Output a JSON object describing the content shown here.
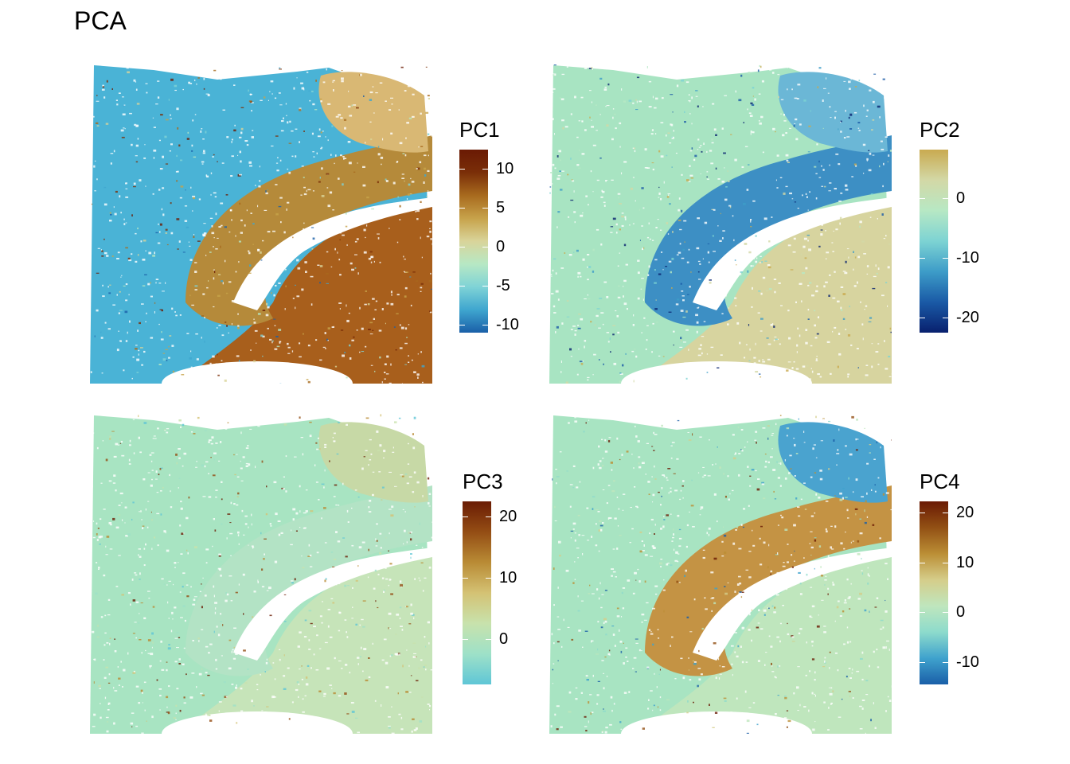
{
  "figure": {
    "title": "PCA"
  },
  "colors": {
    "scale": [
      "#08306b",
      "#1f78b4",
      "#5bc8d6",
      "#a8e4c2",
      "#d8d6a0",
      "#c8a84a",
      "#b07a28",
      "#8a4a12",
      "#6b1e04"
    ],
    "tissue_background": "#a8e4c2"
  },
  "chart_data": [
    {
      "type": "heatmap",
      "panel": "PC1",
      "legend": {
        "title": "PC1",
        "ticks": [
          10,
          5,
          0,
          -5,
          -10
        ],
        "range": [
          -11.0,
          12.4
        ]
      },
      "scale_stops": [
        "#1a5fa8",
        "#3fa6cf",
        "#7fd3d6",
        "#b7e8c4",
        "#d9d49a",
        "#c7a24a",
        "#a86a1e",
        "#7a2e08",
        "#6a1a04"
      ]
    },
    {
      "type": "heatmap",
      "panel": "PC2",
      "legend": {
        "title": "PC2",
        "ticks": [
          0,
          -10,
          -20
        ],
        "range": [
          -22.5,
          8.2
        ]
      },
      "scale_stops": [
        "#08206e",
        "#1a5aa6",
        "#3d9cc8",
        "#7dd3d3",
        "#b7e8c4",
        "#d3d8a6",
        "#c9aa50"
      ]
    },
    {
      "type": "heatmap",
      "panel": "PC3",
      "legend": {
        "title": "PC3",
        "ticks": [
          20,
          10,
          0
        ],
        "range": [
          -7.5,
          22.5
        ]
      },
      "scale_stops": [
        "#5fc6d6",
        "#9ee1c8",
        "#c8e2ac",
        "#d4c274",
        "#b98b35",
        "#944d14",
        "#6a1c04"
      ]
    },
    {
      "type": "heatmap",
      "panel": "PC4",
      "legend": {
        "title": "PC4",
        "ticks": [
          20,
          10,
          0,
          -10
        ],
        "range": [
          -14.5,
          22.3
        ]
      },
      "scale_stops": [
        "#1a5fa8",
        "#3fa2cd",
        "#8ddbcc",
        "#bfe6bd",
        "#d5cd8a",
        "#bb8e35",
        "#925014",
        "#6a1a04"
      ]
    }
  ]
}
